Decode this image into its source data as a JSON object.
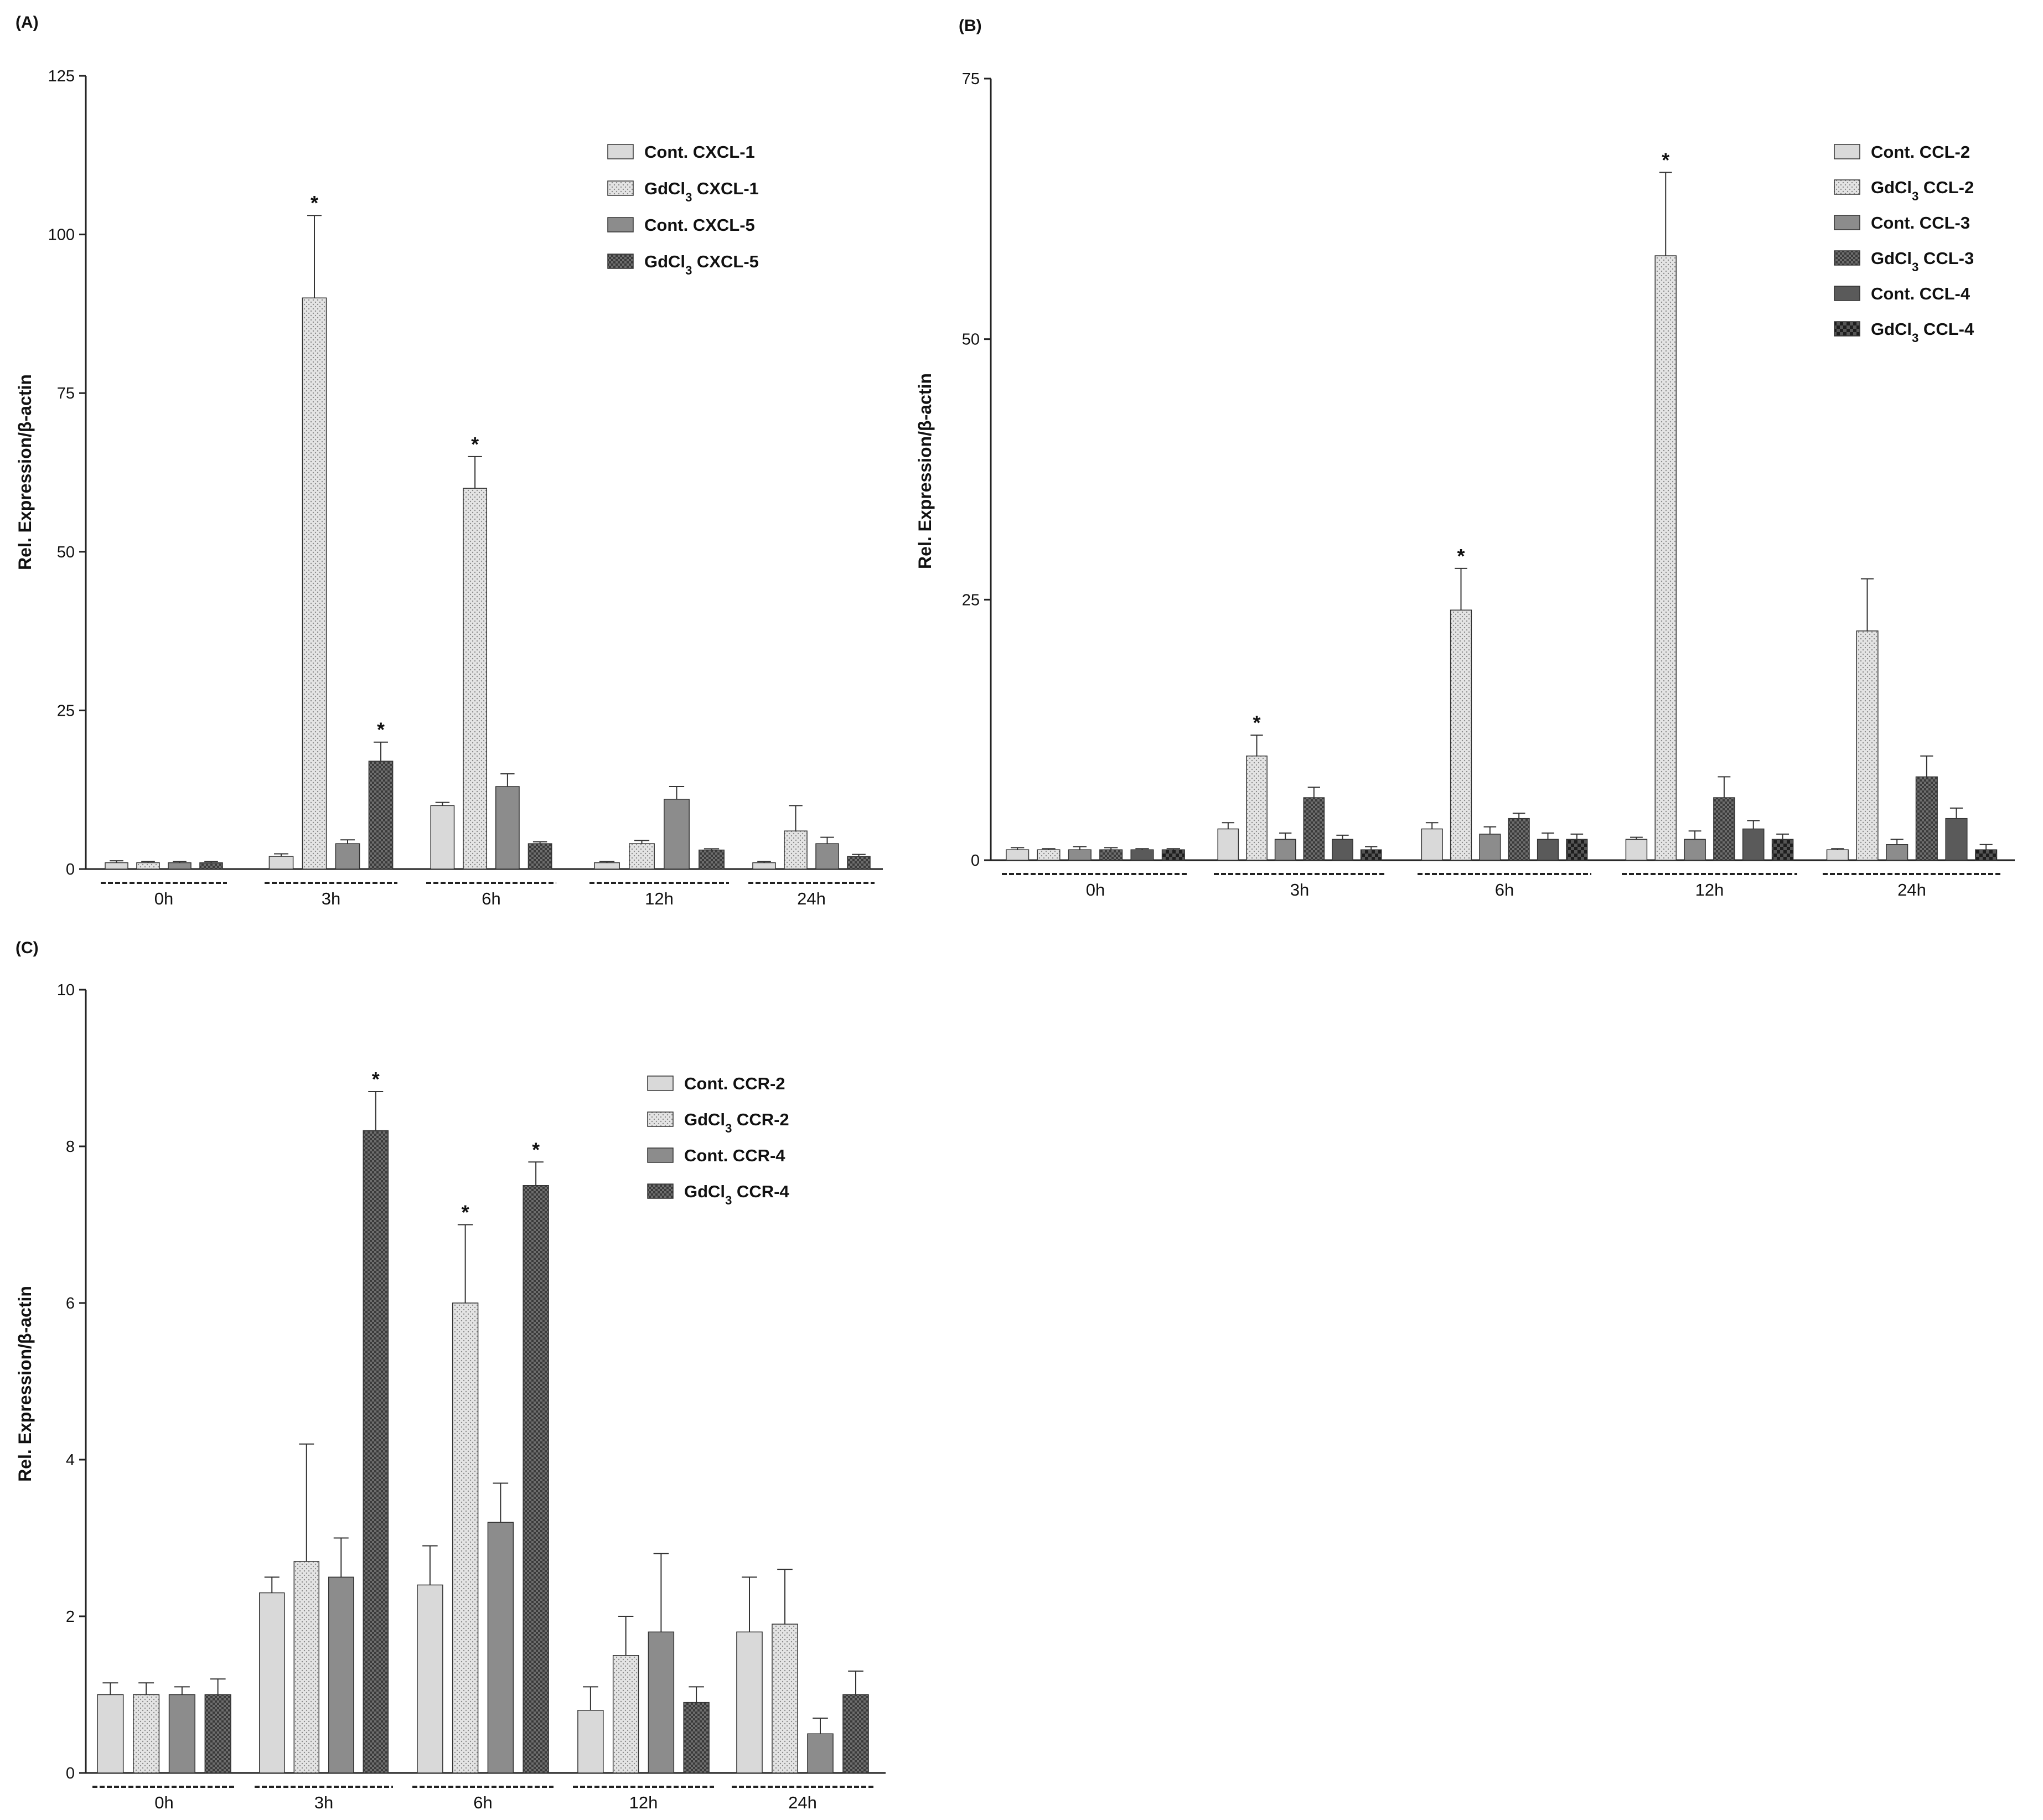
{
  "chart_data": [
    {
      "id": "A",
      "type": "bar",
      "panel_label": "(A)",
      "ylabel": "Rel. Expression/β-actin",
      "ylim": [
        0,
        125
      ],
      "yticks": [
        0,
        25,
        50,
        75,
        100,
        125
      ],
      "categories": [
        "0h",
        "3h",
        "6h",
        "12h",
        "24h"
      ],
      "legend_position": "top-right",
      "series": [
        {
          "name": "Cont. CXCL-1",
          "pattern": "light",
          "values": [
            1,
            2,
            10,
            1,
            1
          ],
          "errors": [
            0.3,
            0.4,
            0.5,
            0.2,
            0.2
          ],
          "significant": [
            false,
            false,
            false,
            false,
            false
          ]
        },
        {
          "name": "GdCl3 CXCL-1",
          "pattern": "dots",
          "values": [
            1,
            90,
            60,
            4,
            6
          ],
          "errors": [
            0.2,
            13,
            5,
            0.5,
            4
          ],
          "significant": [
            false,
            true,
            true,
            false,
            false
          ]
        },
        {
          "name": "Cont. CXCL-5",
          "pattern": "mid",
          "values": [
            1,
            4,
            13,
            11,
            4
          ],
          "errors": [
            0.2,
            0.6,
            2,
            2,
            1
          ],
          "significant": [
            false,
            false,
            false,
            false,
            false
          ]
        },
        {
          "name": "GdCl3 CXCL-5",
          "pattern": "darkcheck",
          "values": [
            1,
            17,
            4,
            3,
            2
          ],
          "errors": [
            0.2,
            3,
            0.3,
            0.2,
            0.3
          ],
          "significant": [
            false,
            true,
            false,
            false,
            false
          ]
        }
      ]
    },
    {
      "id": "B",
      "type": "bar",
      "panel_label": "(B)",
      "ylabel": "Rel. Expression/β-actin",
      "ylim": [
        0,
        75
      ],
      "yticks": [
        0,
        25,
        50,
        75
      ],
      "categories": [
        "0h",
        "3h",
        "6h",
        "12h",
        "24h"
      ],
      "legend_position": "top-right",
      "series": [
        {
          "name": "Cont. CCL-2",
          "pattern": "light",
          "values": [
            1,
            3,
            3,
            2,
            1
          ],
          "errors": [
            0.2,
            0.6,
            0.6,
            0.2,
            0.1
          ],
          "significant": [
            false,
            false,
            false,
            false,
            false
          ]
        },
        {
          "name": "GdCl3 CCL-2",
          "pattern": "dots",
          "values": [
            1,
            10,
            24,
            58,
            22
          ],
          "errors": [
            0.1,
            2,
            4,
            8,
            5
          ],
          "significant": [
            false,
            true,
            true,
            true,
            false
          ]
        },
        {
          "name": "Cont. CCL-3",
          "pattern": "mid",
          "values": [
            1,
            2,
            2.5,
            2,
            1.5
          ],
          "errors": [
            0.3,
            0.6,
            0.7,
            0.8,
            0.5
          ],
          "significant": [
            false,
            false,
            false,
            false,
            false
          ]
        },
        {
          "name": "GdCl3 CCL-3",
          "pattern": "darkcheck",
          "values": [
            1,
            6,
            4,
            6,
            8
          ],
          "errors": [
            0.2,
            1,
            0.5,
            2,
            2
          ],
          "significant": [
            false,
            false,
            false,
            false,
            false
          ]
        },
        {
          "name": "Cont. CCL-4",
          "pattern": "dark",
          "values": [
            1,
            2,
            2,
            3,
            4
          ],
          "errors": [
            0.1,
            0.4,
            0.6,
            0.8,
            1
          ],
          "significant": [
            false,
            false,
            false,
            false,
            false
          ]
        },
        {
          "name": "GdCl3 CCL-4",
          "pattern": "blackcheck",
          "values": [
            1,
            1,
            2,
            2,
            1
          ],
          "errors": [
            0.1,
            0.3,
            0.5,
            0.5,
            0.5
          ],
          "significant": [
            false,
            false,
            false,
            false,
            false
          ]
        }
      ]
    },
    {
      "id": "C",
      "type": "bar",
      "panel_label": "(C)",
      "ylabel": "Rel. Expression/β-actin",
      "ylim": [
        0,
        10
      ],
      "yticks": [
        0,
        2,
        4,
        6,
        8,
        10
      ],
      "categories": [
        "0h",
        "3h",
        "6h",
        "12h",
        "24h"
      ],
      "legend_position": "top-right",
      "series": [
        {
          "name": "Cont. CCR-2",
          "pattern": "light",
          "values": [
            1,
            2.3,
            2.4,
            0.8,
            1.8
          ],
          "errors": [
            0.15,
            0.2,
            0.5,
            0.3,
            0.7
          ],
          "significant": [
            false,
            false,
            false,
            false,
            false
          ]
        },
        {
          "name": "GdCl3 CCR-2",
          "pattern": "dots",
          "values": [
            1,
            2.7,
            6,
            1.5,
            1.9
          ],
          "errors": [
            0.15,
            1.5,
            1,
            0.5,
            0.7
          ],
          "significant": [
            false,
            false,
            true,
            false,
            false
          ]
        },
        {
          "name": "Cont. CCR-4",
          "pattern": "mid",
          "values": [
            1,
            2.5,
            3.2,
            1.8,
            0.5
          ],
          "errors": [
            0.1,
            0.5,
            0.5,
            1,
            0.2
          ],
          "significant": [
            false,
            false,
            false,
            false,
            false
          ]
        },
        {
          "name": "GdCl3 CCR-4",
          "pattern": "darkcheck",
          "values": [
            1,
            8.2,
            7.5,
            0.9,
            1
          ],
          "errors": [
            0.2,
            0.5,
            0.3,
            0.2,
            0.3
          ],
          "significant": [
            false,
            true,
            true,
            false,
            false
          ]
        }
      ]
    }
  ],
  "significance_marker": "*"
}
